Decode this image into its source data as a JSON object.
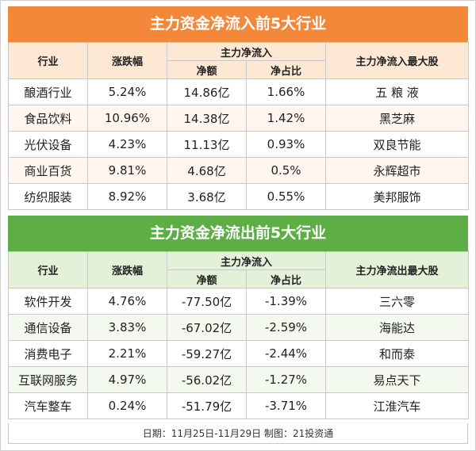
{
  "inflow": {
    "title": "主力资金净流入前5大行业",
    "headers": {
      "industry": "行业",
      "change": "涨跌幅",
      "net_flow_group": "主力净流入",
      "amount": "净额",
      "ratio": "净占比",
      "top_stock": "主力净流入最大股"
    },
    "rows": [
      {
        "industry": "酿酒行业",
        "change": "5.24%",
        "amount": "14.86亿",
        "ratio": "1.66%",
        "top_stock": "五 粮 液"
      },
      {
        "industry": "食品饮料",
        "change": "10.96%",
        "amount": "14.38亿",
        "ratio": "1.42%",
        "top_stock": "黑芝麻"
      },
      {
        "industry": "光伏设备",
        "change": "4.23%",
        "amount": "11.13亿",
        "ratio": "0.93%",
        "top_stock": "双良节能"
      },
      {
        "industry": "商业百货",
        "change": "9.81%",
        "amount": "4.68亿",
        "ratio": "0.5%",
        "top_stock": "永辉超市"
      },
      {
        "industry": "纺织服装",
        "change": "8.92%",
        "amount": "3.68亿",
        "ratio": "0.55%",
        "top_stock": "美邦服饰"
      }
    ]
  },
  "outflow": {
    "title": "主力资金净流出前5大行业",
    "headers": {
      "industry": "行业",
      "change": "涨跌幅",
      "net_flow_group": "主力净流入",
      "amount": "净额",
      "ratio": "净占比",
      "top_stock": "主力净流出最大股"
    },
    "rows": [
      {
        "industry": "软件开发",
        "change": "4.76%",
        "amount": "-77.50亿",
        "ratio": "-1.39%",
        "top_stock": "三六零"
      },
      {
        "industry": "通信设备",
        "change": "3.83%",
        "amount": "-67.02亿",
        "ratio": "-2.59%",
        "top_stock": "海能达"
      },
      {
        "industry": "消费电子",
        "change": "2.21%",
        "amount": "-59.27亿",
        "ratio": "-2.44%",
        "top_stock": "和而泰"
      },
      {
        "industry": "互联网服务",
        "change": "4.97%",
        "amount": "-56.02亿",
        "ratio": "-1.27%",
        "top_stock": "易点天下"
      },
      {
        "industry": "汽车整车",
        "change": "0.24%",
        "amount": "-51.79亿",
        "ratio": "-3.71%",
        "top_stock": "江淮汽车"
      }
    ]
  },
  "footer": "日期：11月25日-11月29日 制图：21投资通",
  "colors": {
    "inflow_accent": "#f3883a",
    "outflow_accent": "#5cae45"
  }
}
